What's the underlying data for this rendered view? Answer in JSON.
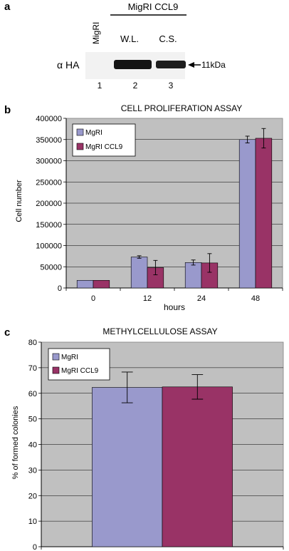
{
  "panel_a": {
    "panel_letter": "a",
    "group_label": "MigRI CCL9",
    "lane_header_1": "MigRI",
    "lane_header_2": "W.L.",
    "lane_header_3": "C.S.",
    "antibody_label": "α HA",
    "size_marker": "11kDa",
    "lane_numbers": [
      "1",
      "2",
      "3"
    ]
  },
  "panel_b_letter": "b",
  "panel_c_letter": "c",
  "colors": {
    "migri": "#9999cc",
    "migri_ccl9": "#993366",
    "plot_bg": "#c0c0c0"
  },
  "chart_data": [
    {
      "type": "bar",
      "title": "CELL PROLIFERATION ASSAY",
      "xlabel": "hours",
      "ylabel": "Cell number",
      "categories": [
        "0",
        "12",
        "24",
        "48"
      ],
      "ylim": [
        0,
        400000
      ],
      "yticks": [
        "0",
        "50000",
        "100000",
        "150000",
        "200000",
        "250000",
        "300000",
        "350000",
        "400000"
      ],
      "grid": true,
      "legend_position": "top-left",
      "series": [
        {
          "name": "MgRI",
          "values": [
            18000,
            73000,
            60000,
            350000
          ],
          "errors": [
            0,
            3000,
            6000,
            8000
          ]
        },
        {
          "name": "MgRI CCL9",
          "values": [
            18000,
            48000,
            59000,
            353000
          ],
          "errors": [
            0,
            17000,
            22000,
            23000
          ]
        }
      ]
    },
    {
      "type": "bar",
      "title": "METHYLCELLULOSE ASSAY",
      "xlabel": "",
      "ylabel": "% of formed colonies",
      "categories": [
        ""
      ],
      "ylim": [
        0,
        80
      ],
      "yticks": [
        "0",
        "10",
        "20",
        "30",
        "40",
        "50",
        "60",
        "70",
        "80"
      ],
      "grid": true,
      "legend_position": "top-left",
      "series": [
        {
          "name": "MgRI",
          "values": [
            62.3
          ],
          "errors": [
            6.0
          ]
        },
        {
          "name": "MgRI CCL9",
          "values": [
            62.5
          ],
          "errors": [
            4.8
          ]
        }
      ]
    }
  ]
}
